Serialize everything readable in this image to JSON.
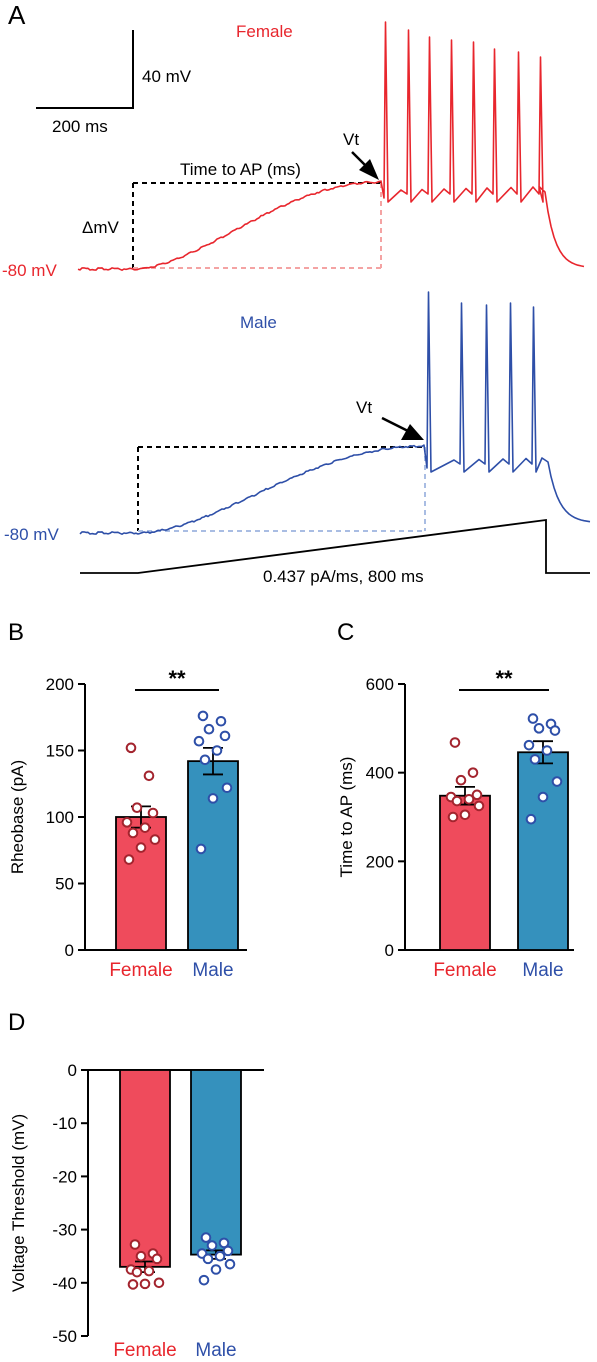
{
  "panel_a": {
    "label": "A",
    "scale_bar": {
      "v_label": "40 mV",
      "h_label": "200 ms"
    },
    "female": {
      "title": "Female",
      "rest_label": "-80 mV",
      "vt_label": "Vt",
      "time_label": "Time to AP (ms)",
      "dmv_label": "ΔmV",
      "spike_count": 9
    },
    "male": {
      "title": "Male",
      "rest_label": "-80 mV",
      "vt_label": "Vt",
      "spike_count": 5
    },
    "stimulus_label": "0.437 pA/ms, 800 ms"
  },
  "colors": {
    "female_trace": "#e8262d",
    "male_trace": "#2e4fa8",
    "female_bar": "#ef4b5c",
    "male_bar": "#3591bd",
    "female_point": "#a3242e",
    "male_point": "#2e4fa8",
    "female_text": "#e8262d",
    "male_text": "#2e4fa8"
  },
  "chart_data": [
    {
      "panel": "B",
      "type": "bar",
      "categories": [
        "Female",
        "Male"
      ],
      "ylabel": "Rheobase (pA)",
      "ylim": [
        0,
        200
      ],
      "yticks": [
        0,
        50,
        100,
        150,
        200
      ],
      "means": [
        100,
        142
      ],
      "sem": [
        8,
        10
      ],
      "points": [
        [
          152,
          131,
          107,
          103,
          96,
          92,
          88,
          83,
          77,
          68
        ],
        [
          176,
          172,
          166,
          161,
          157,
          150,
          143,
          122,
          114,
          76
        ]
      ],
      "significance": "**"
    },
    {
      "panel": "C",
      "type": "bar",
      "categories": [
        "Female",
        "Male"
      ],
      "ylabel": "Time to AP (ms)",
      "ylim": [
        0,
        600
      ],
      "yticks": [
        0,
        200,
        400,
        600
      ],
      "means": [
        348,
        446
      ],
      "sem": [
        20,
        25
      ],
      "points": [
        [
          468,
          400,
          383,
          350,
          345,
          340,
          336,
          325,
          305,
          300
        ],
        [
          522,
          510,
          500,
          495,
          462,
          450,
          430,
          380,
          345,
          295
        ]
      ],
      "significance": "**"
    },
    {
      "panel": "D",
      "type": "bar",
      "categories": [
        "Female",
        "Male"
      ],
      "ylabel": "Voltage Threshold (mV)",
      "ylim": [
        -50,
        0
      ],
      "yticks": [
        0,
        -10,
        -20,
        -30,
        -40,
        -50
      ],
      "means": [
        -37,
        -34.7
      ],
      "sem": [
        1.0,
        0.8
      ],
      "points": [
        [
          -32.8,
          -34.5,
          -35,
          -35.5,
          -37.5,
          -37.8,
          -38,
          -40,
          -40.2,
          -40.3
        ],
        [
          -31.5,
          -32.5,
          -33,
          -34,
          -34.5,
          -35,
          -35.5,
          -36.5,
          -37.5,
          -39.5
        ]
      ],
      "significance": ""
    }
  ]
}
